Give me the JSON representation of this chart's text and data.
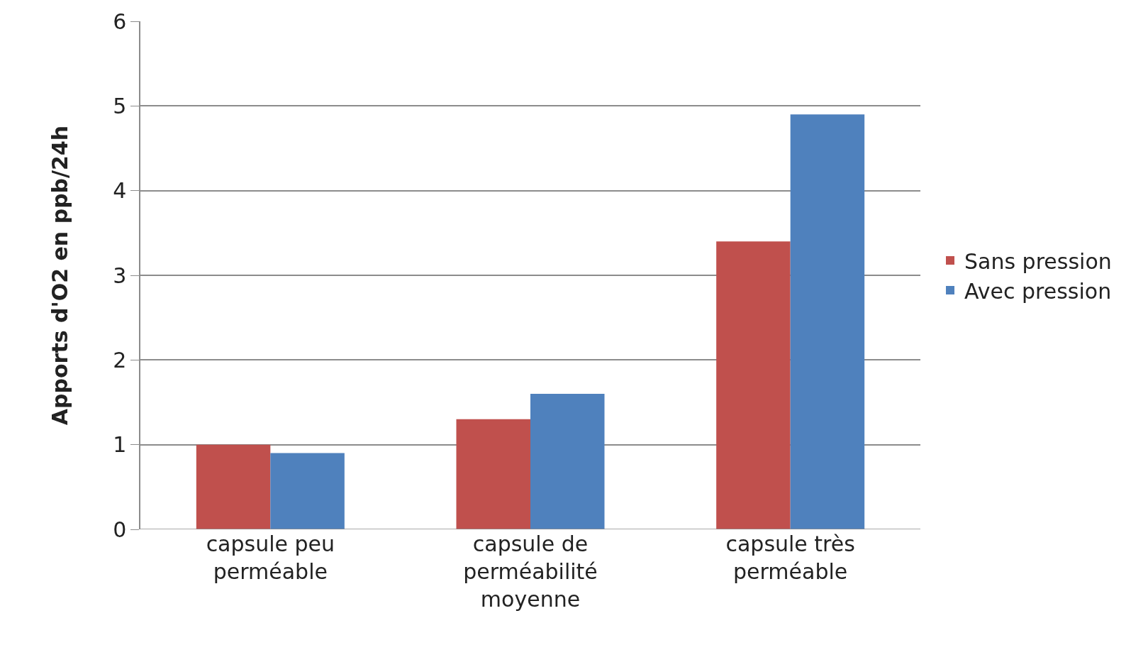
{
  "chart_data": {
    "type": "bar",
    "ylabel": "Apports d'O2 en ppb/24h",
    "categories": [
      "capsule peu\nperméable",
      "capsule de\nperméabilité\nmoyenne",
      "capsule très\nperméable"
    ],
    "series": [
      {
        "name": "Sans pression",
        "color": "#c0504d",
        "values": [
          1.0,
          1.3,
          3.4
        ]
      },
      {
        "name": "Avec pression",
        "color": "#4f81bd",
        "values": [
          0.9,
          1.6,
          4.9
        ]
      }
    ],
    "ylim": [
      0,
      6
    ],
    "yticks": [
      0,
      1,
      2,
      3,
      4,
      5,
      6
    ],
    "grid": "y",
    "legend": "right"
  }
}
